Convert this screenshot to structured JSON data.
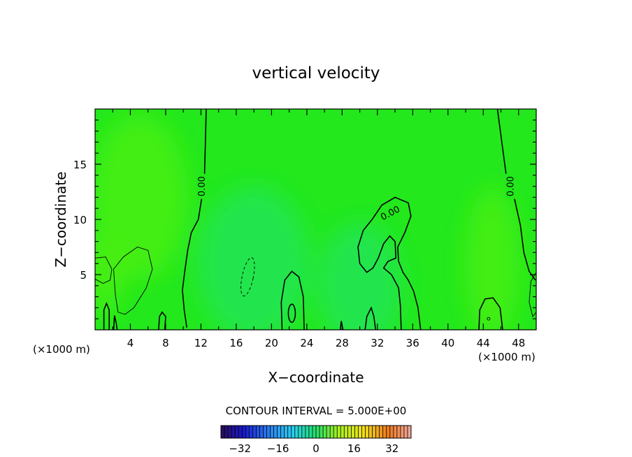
{
  "chart_data": {
    "type": "heatmap",
    "title": "vertical velocity",
    "xlabel": "X−coordinate",
    "ylabel": "Z−coordinate",
    "x_unit_left": "(×1000 m)",
    "x_unit_right": "(×1000 m)",
    "xlim": [
      0,
      50
    ],
    "ylim": [
      0,
      20
    ],
    "x_ticks": [
      4,
      8,
      12,
      16,
      20,
      24,
      28,
      32,
      36,
      40,
      44,
      48
    ],
    "x_tick_labels": [
      "4",
      "8",
      "12",
      "16",
      "20",
      "24",
      "28",
      "32",
      "36",
      "40",
      "44",
      "48"
    ],
    "y_ticks": [
      5,
      10,
      15
    ],
    "y_tick_labels": [
      "5",
      "10",
      "15"
    ],
    "contour_interval_text": "CONTOUR INTERVAL = 5.000E+00",
    "contour_labels": [
      {
        "text": "0.00",
        "x": 12.2,
        "z": 13.0
      },
      {
        "text": "0.00",
        "x": 33.5,
        "z": 10.5
      },
      {
        "text": "0.00",
        "x": 47.2,
        "z": 13.0
      }
    ],
    "colorbar": {
      "min": -40,
      "max": 40,
      "ticks": [
        -32,
        -16,
        0,
        16,
        32
      ],
      "tick_labels": [
        "−32",
        "−16",
        "0",
        "16",
        "32"
      ]
    },
    "colors": {
      "field_base": "#22e81c",
      "field_up": "#4ef00c",
      "field_down": "#22e45e",
      "contour": "#000000"
    }
  }
}
